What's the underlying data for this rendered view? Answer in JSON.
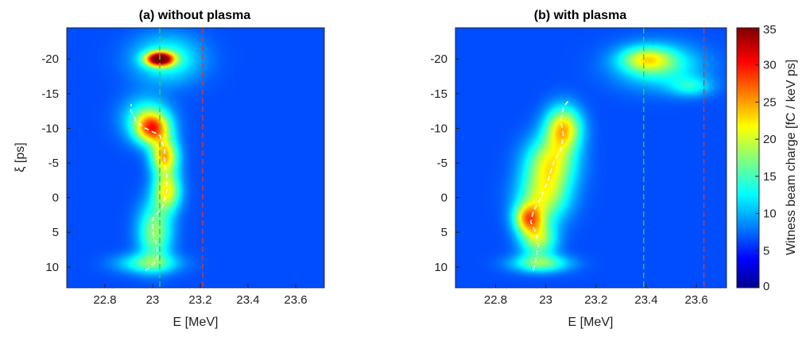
{
  "colorbar": {
    "label": "Witness beam charge [fC / keV ps]",
    "min": 0,
    "max": 35,
    "ticks": [
      0,
      5,
      10,
      15,
      20,
      25,
      30,
      35
    ],
    "colormap": "jet"
  },
  "chart_data": [
    {
      "type": "heatmap",
      "title": "(a) without plasma",
      "xlabel": "E [MeV]",
      "ylabel": "ξ [ps]",
      "xlim": [
        22.64,
        23.72
      ],
      "ylim": [
        13,
        -24.5
      ],
      "xticks": [
        22.8,
        23,
        23.2,
        23.4,
        23.6
      ],
      "yticks": [
        -20,
        -15,
        -10,
        -5,
        0,
        5,
        10
      ],
      "background_color": "#3a34b0",
      "vlines": [
        {
          "x": 23.03,
          "color": "#3fc84a",
          "style": "dashed"
        },
        {
          "x": 23.21,
          "color": "#d23a3a",
          "style": "dashed"
        }
      ],
      "blobs": [
        {
          "e": 23.06,
          "xi": -20,
          "amplitude": 10,
          "shape": "drive bunch",
          "e_width": 0.1,
          "xi_width": 2.4
        },
        {
          "e": 23.03,
          "xi": -20,
          "amplitude": 35,
          "e_width": 0.04,
          "xi_width": 0.7
        },
        {
          "e": 22.97,
          "xi": -11.5,
          "amplitude": 9,
          "e_width": 0.07,
          "xi_width": 2.2
        },
        {
          "e": 23.0,
          "xi": -10,
          "amplitude": 22,
          "e_width": 0.05,
          "xi_width": 1.6
        },
        {
          "e": 23.05,
          "xi": -6,
          "amplitude": 21,
          "e_width": 0.04,
          "xi_width": 1.8
        },
        {
          "e": 23.06,
          "xi": -1,
          "amplitude": 18,
          "e_width": 0.04,
          "xi_width": 2.0
        },
        {
          "e": 23.01,
          "xi": 5,
          "amplitude": 14,
          "e_width": 0.05,
          "xi_width": 3.0
        },
        {
          "e": 22.98,
          "xi": 9.5,
          "amplitude": 10,
          "e_width": 0.09,
          "xi_width": 1.0
        }
      ],
      "centroid": [
        [
          22.97,
          10.5
        ],
        [
          22.99,
          10.0
        ],
        [
          23.02,
          9.0
        ],
        [
          23.02,
          7.0
        ],
        [
          23.0,
          5.0
        ],
        [
          23.0,
          3.0
        ],
        [
          23.04,
          1.5
        ],
        [
          23.06,
          -1.0
        ],
        [
          23.06,
          -3.0
        ],
        [
          23.05,
          -5.0
        ],
        [
          23.05,
          -7.0
        ],
        [
          23.03,
          -9.0
        ],
        [
          22.97,
          -10.0
        ],
        [
          22.93,
          -11.0
        ],
        [
          22.91,
          -12.5
        ],
        [
          22.91,
          -13.5
        ]
      ]
    },
    {
      "type": "heatmap",
      "title": "(b) with plasma",
      "xlabel": "E [MeV]",
      "ylabel": "",
      "xlim": [
        22.64,
        23.72
      ],
      "ylim": [
        13,
        -24.5
      ],
      "xticks": [
        22.8,
        23,
        23.2,
        23.4,
        23.6
      ],
      "yticks": [
        -20,
        -15,
        -10,
        -5,
        0,
        5,
        10
      ],
      "background_color": "#3a34b0",
      "vlines": [
        {
          "x": 23.39,
          "color": "#3fc84a",
          "style": "dashed"
        },
        {
          "x": 23.63,
          "color": "#d23a3a",
          "style": "dashed"
        }
      ],
      "blobs": [
        {
          "e": 23.45,
          "xi": -19,
          "amplitude": 10,
          "e_width": 0.12,
          "xi_width": 2.2
        },
        {
          "e": 23.4,
          "xi": -20,
          "amplitude": 12,
          "e_width": 0.07,
          "xi_width": 1.2
        },
        {
          "e": 23.58,
          "xi": -16,
          "amplitude": 7,
          "e_width": 0.06,
          "xi_width": 1.0
        },
        {
          "e": 23.07,
          "xi": -10,
          "amplitude": 20,
          "e_width": 0.05,
          "xi_width": 2.2
        },
        {
          "e": 23.02,
          "xi": -5,
          "amplitude": 17,
          "e_width": 0.07,
          "xi_width": 2.6
        },
        {
          "e": 22.99,
          "xi": 0,
          "amplitude": 15,
          "e_width": 0.07,
          "xi_width": 2.5
        },
        {
          "e": 22.93,
          "xi": 3,
          "amplitude": 19,
          "e_width": 0.04,
          "xi_width": 1.5
        },
        {
          "e": 22.97,
          "xi": 6,
          "amplitude": 15,
          "e_width": 0.05,
          "xi_width": 1.8
        },
        {
          "e": 22.98,
          "xi": 9.5,
          "amplitude": 12,
          "e_width": 0.08,
          "xi_width": 0.9
        }
      ],
      "centroid": [
        [
          22.95,
          10.5
        ],
        [
          22.96,
          9.0
        ],
        [
          22.97,
          7.0
        ],
        [
          22.96,
          5.0
        ],
        [
          22.94,
          3.5
        ],
        [
          22.95,
          2.0
        ],
        [
          22.98,
          0.0
        ],
        [
          23.01,
          -2.5
        ],
        [
          23.03,
          -5.0
        ],
        [
          23.06,
          -7.0
        ],
        [
          23.07,
          -9.0
        ],
        [
          23.06,
          -11.0
        ],
        [
          23.07,
          -13.0
        ],
        [
          23.09,
          -14.0
        ]
      ]
    }
  ]
}
